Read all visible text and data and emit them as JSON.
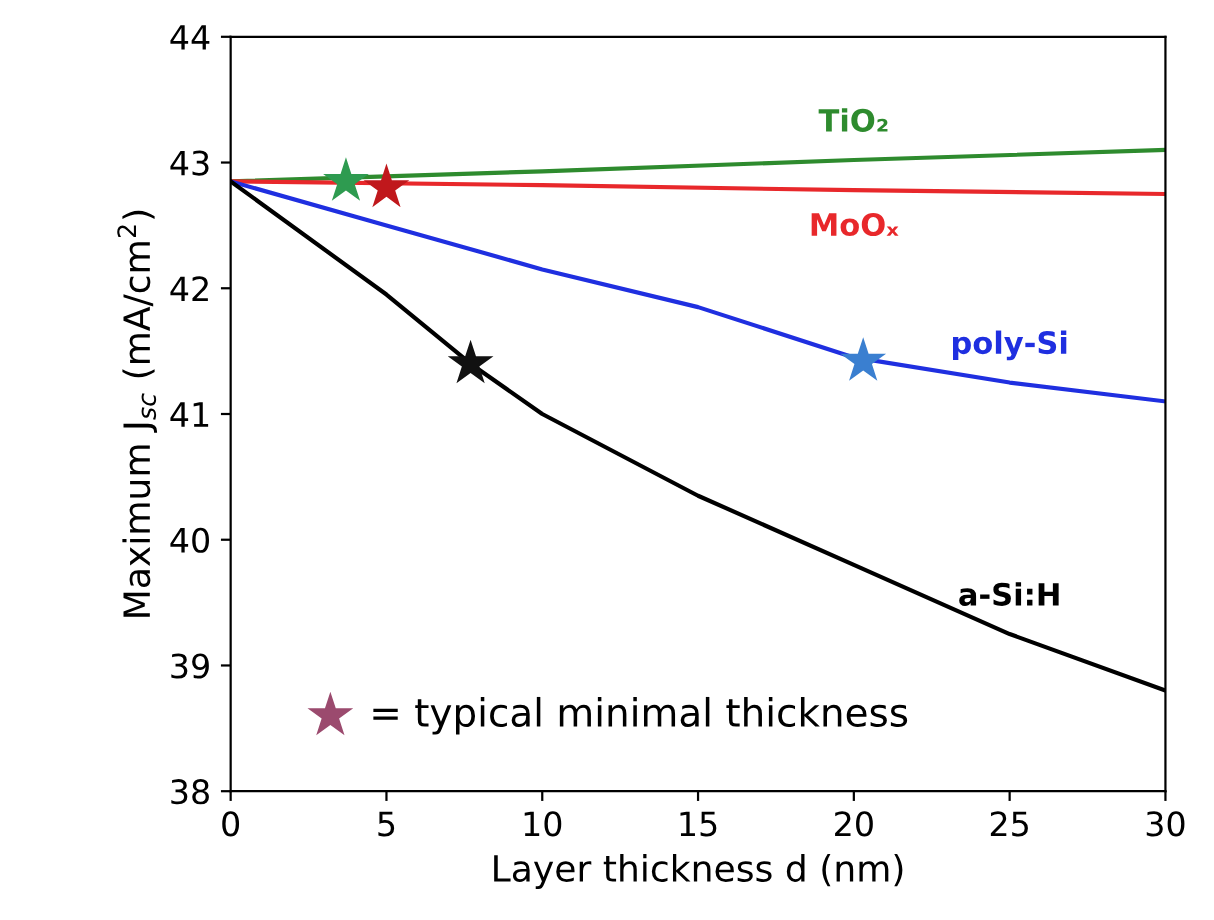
{
  "chart_data": {
    "type": "line",
    "xlabel": "Layer thickness d (nm)",
    "ylabel": "Maximum J$_{sc}$ (mA/cm$^{2}$)",
    "xlim": [
      0,
      30
    ],
    "xticks": [
      0,
      5,
      10,
      15,
      20,
      25,
      30
    ],
    "ylim": [
      38,
      44
    ],
    "yticks": [
      38,
      39,
      40,
      41,
      42,
      43,
      44
    ],
    "grid": false,
    "marker": "none",
    "line_style": "solid",
    "series": [
      {
        "name": "TiO₂",
        "color": "#2e8b2e",
        "x": [
          0,
          10,
          20,
          30
        ],
        "values": [
          42.85,
          42.93,
          43.02,
          43.1
        ]
      },
      {
        "name": "MoOₓ",
        "color": "#e8282b",
        "x": [
          0,
          10,
          20,
          30
        ],
        "values": [
          42.85,
          42.82,
          42.78,
          42.75
        ]
      },
      {
        "name": "poly-Si",
        "color": "#1f2fe0",
        "x": [
          0,
          5,
          10,
          15,
          20,
          25,
          30
        ],
        "values": [
          42.85,
          42.5,
          42.15,
          41.85,
          41.45,
          41.25,
          41.1
        ]
      },
      {
        "name": "a-Si:H",
        "color": "#000000",
        "x": [
          0,
          5,
          7.7,
          10,
          15,
          20,
          25,
          30
        ],
        "values": [
          42.85,
          41.95,
          41.4,
          41.0,
          40.35,
          39.8,
          39.25,
          38.8
        ]
      },
      {
        "type": "scatter",
        "marker": "star",
        "x": [
          3.7,
          5.0,
          7.7,
          20.3
        ],
        "values": [
          42.85,
          42.8,
          41.4,
          41.42
        ],
        "colors": [
          "#2e9b50",
          "#c0181c",
          "#111111",
          "#3a7fd0"
        ]
      }
    ],
    "annotations": [
      {
        "text": "= typical minimal thickness",
        "x": 3.2,
        "y": 38.6
      }
    ]
  }
}
